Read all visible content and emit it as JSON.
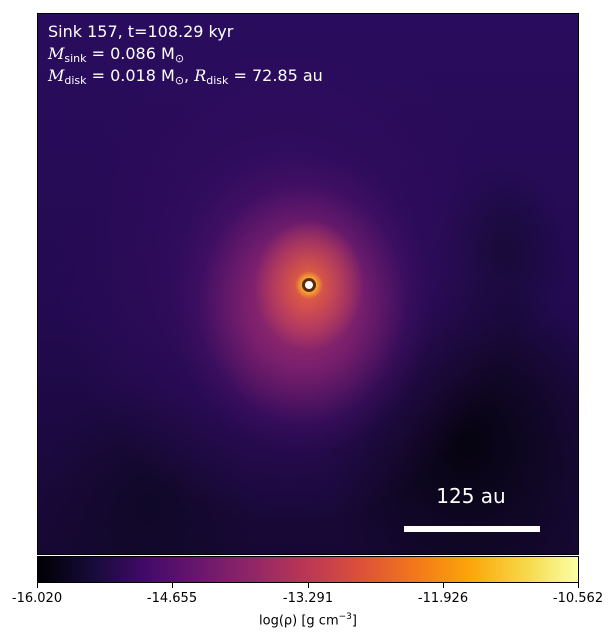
{
  "annotation": {
    "line1": "Sink 157, t=108.29 kyr",
    "m_sink_symbol": "M",
    "m_sink_sub": "sink",
    "m_sink_value": " = 0.086 M",
    "m_sink_unit_sub": "⊙",
    "m_disk_symbol": "M",
    "m_disk_sub": "disk",
    "m_disk_value": " = 0.018 M",
    "m_disk_unit_sub": "⊙",
    "r_disk_prefix": ", ",
    "r_disk_symbol": "R",
    "r_disk_sub": "disk",
    "r_disk_value": " = 72.85 au"
  },
  "scale_bar": {
    "label": "125 au"
  },
  "colorbar": {
    "ticks": [
      "-16.020",
      "-14.655",
      "-13.291",
      "-11.926",
      "-10.562"
    ],
    "label_main": "log(ρ) [g cm",
    "label_exp": "−3",
    "label_end": "]",
    "colormap": "inferno"
  }
}
